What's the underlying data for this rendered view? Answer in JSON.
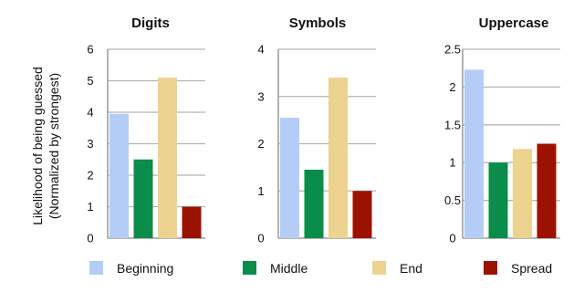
{
  "ylabel_line1": "Likelihood of being guessed",
  "ylabel_line2": "(Normalized by strongest)",
  "legend": [
    {
      "label": "Beginning",
      "color": "#b3cdf6"
    },
    {
      "label": "Middle",
      "color": "#0a8d4b"
    },
    {
      "label": "End",
      "color": "#ecd38f"
    },
    {
      "label": "Spread",
      "color": "#9b1300"
    }
  ],
  "chart_data": [
    {
      "type": "bar",
      "title": "Digits",
      "categories": [
        "Beginning",
        "Middle",
        "End",
        "Spread"
      ],
      "values": [
        3.95,
        2.5,
        5.1,
        1.0
      ],
      "ylim": [
        0,
        6
      ],
      "yticks": [
        "0",
        "1",
        "2",
        "3",
        "4",
        "5",
        "6"
      ],
      "grid": true
    },
    {
      "type": "bar",
      "title": "Symbols",
      "categories": [
        "Beginning",
        "Middle",
        "End",
        "Spread"
      ],
      "values": [
        2.55,
        1.45,
        3.4,
        1.0
      ],
      "ylim": [
        0,
        4
      ],
      "yticks": [
        "0",
        "1",
        "2",
        "3",
        "4"
      ],
      "grid": true
    },
    {
      "type": "bar",
      "title": "Uppercase",
      "categories": [
        "Beginning",
        "Middle",
        "End",
        "Spread"
      ],
      "values": [
        2.23,
        1.0,
        1.18,
        1.25
      ],
      "ylim": [
        0,
        2.5
      ],
      "yticks": [
        "0",
        "0.5",
        "1",
        "1.5",
        "2",
        "2.5"
      ],
      "grid": true
    }
  ]
}
